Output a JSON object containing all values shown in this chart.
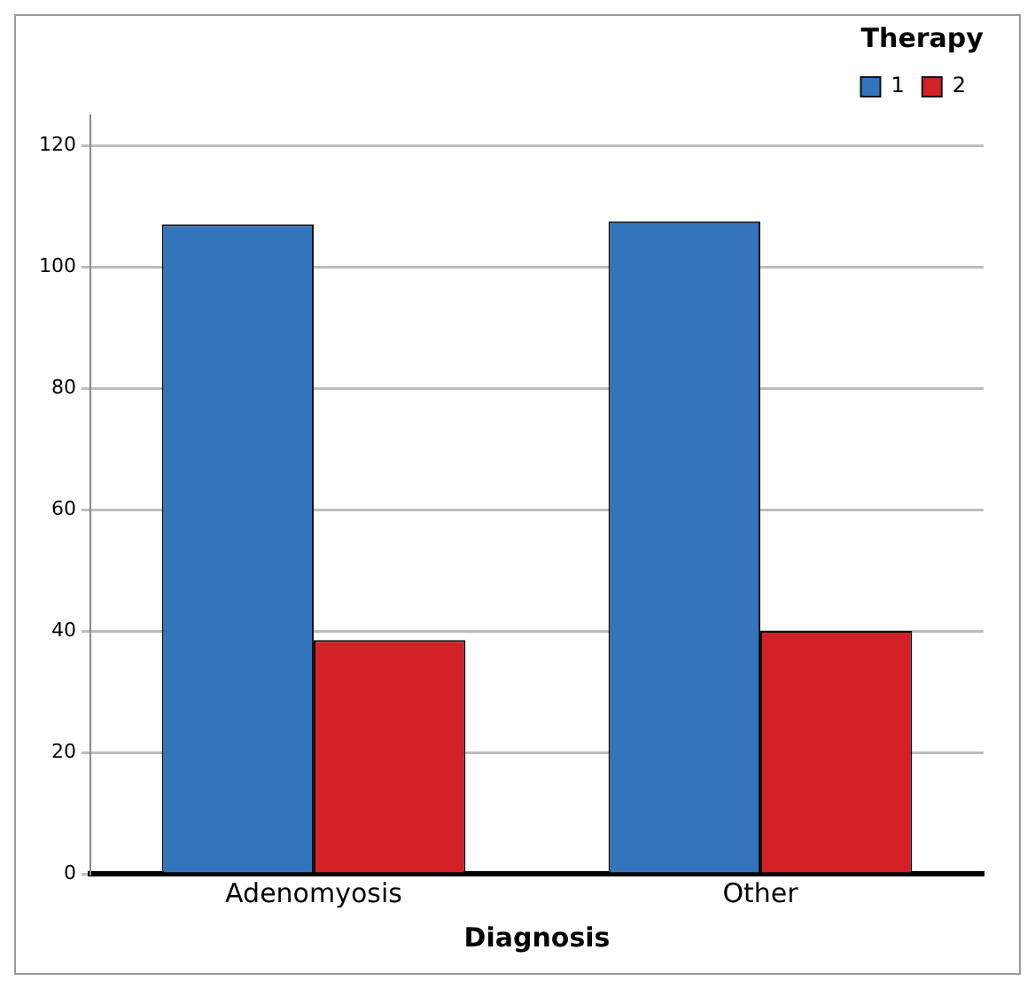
{
  "chart_data": {
    "type": "bar",
    "xlabel": "Diagnosis",
    "legend_title": "Therapy",
    "categories": [
      "Adenomyosis",
      "Other"
    ],
    "series": [
      {
        "name": "1",
        "color": "#3375bd",
        "values": [
          107,
          107.5
        ]
      },
      {
        "name": "2",
        "color": "#d42027",
        "values": [
          38.5,
          40
        ]
      }
    ],
    "ylim": [
      0,
      125
    ],
    "yticks": [
      0,
      20,
      40,
      60,
      80,
      100,
      120
    ],
    "grid": "y",
    "legend": "top right"
  }
}
